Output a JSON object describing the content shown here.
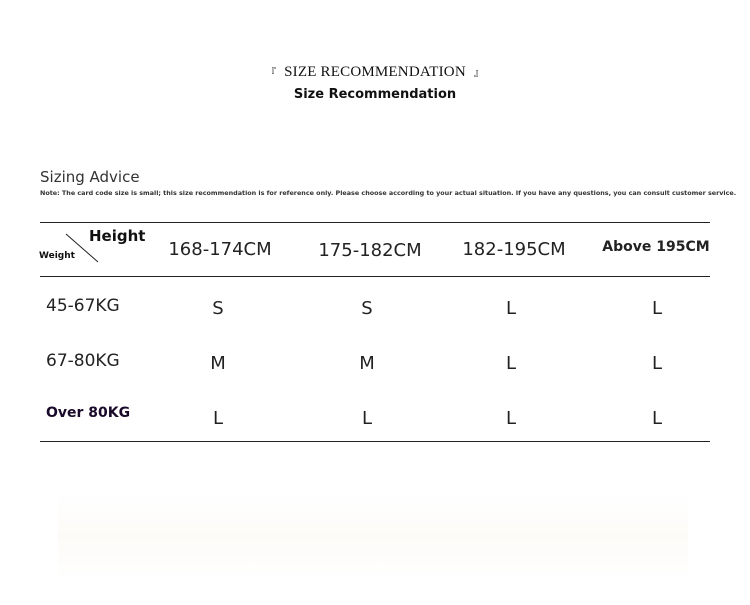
{
  "header": {
    "title_en_caps": "SIZE RECOMMENDATION",
    "title": "Size Recommendation",
    "bracket_left": "『",
    "bracket_right": "』"
  },
  "advice": {
    "heading": "Sizing Advice",
    "note": "Note: The card code size is small; this size recommendation is for reference only. Please choose according to your actual situation. If you have any questions, you can consult customer service."
  },
  "table": {
    "corner": {
      "height": "Height",
      "weight": "Weight"
    },
    "columns": [
      "168-174CM",
      "175-182CM",
      "182-195CM",
      "Above 195CM"
    ],
    "rows": [
      {
        "label": "45-67KG",
        "values": [
          "S",
          "S",
          "L",
          "L"
        ]
      },
      {
        "label": "67-80KG",
        "values": [
          "M",
          "M",
          "L",
          "L"
        ]
      },
      {
        "label": "Over 80KG",
        "values": [
          "L",
          "L",
          "L",
          "L"
        ]
      }
    ]
  }
}
